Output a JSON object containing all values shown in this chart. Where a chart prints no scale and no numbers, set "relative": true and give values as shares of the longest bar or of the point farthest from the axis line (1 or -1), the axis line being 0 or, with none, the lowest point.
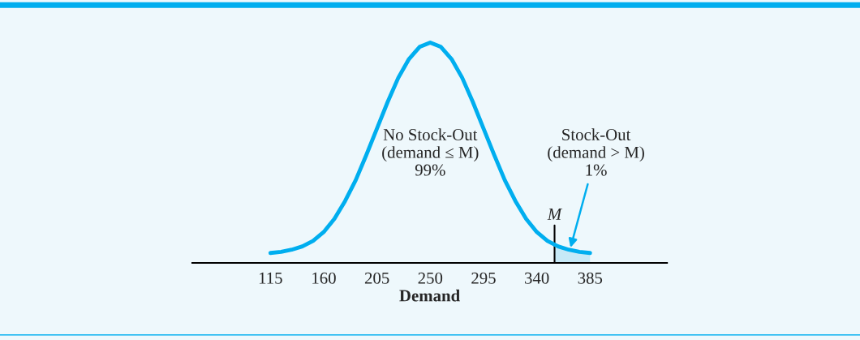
{
  "chart_data": {
    "type": "line",
    "relative": true,
    "xlabel": "Demand",
    "x": [
      115,
      124,
      133,
      142,
      151,
      160,
      169,
      178,
      187,
      196,
      205,
      214,
      223,
      232,
      241,
      250,
      259,
      268,
      277,
      286,
      295,
      304,
      313,
      322,
      331,
      340,
      349,
      358,
      367,
      376,
      385
    ],
    "series": [
      {
        "type": "area",
        "color": "#c6e9f7",
        "x": [
          355,
          358,
          367,
          376,
          385
        ],
        "values": [
          0.083,
          0.075,
          0.06,
          0.05,
          0.045
        ]
      },
      {
        "color": "#00aeef",
        "values": [
          0.045,
          0.05,
          0.06,
          0.075,
          0.1,
          0.14,
          0.2,
          0.28,
          0.375,
          0.49,
          0.61,
          0.73,
          0.84,
          0.925,
          0.98,
          1,
          0.98,
          0.925,
          0.84,
          0.73,
          0.61,
          0.49,
          0.375,
          0.28,
          0.2,
          0.14,
          0.1,
          0.075,
          0.06,
          0.05,
          0.045
        ]
      }
    ],
    "xlim": [
      49,
      450
    ],
    "xticks": [
      115,
      160,
      205,
      250,
      295,
      340,
      385
    ],
    "ref_lines": [
      {
        "axis": "x",
        "value": 355,
        "label": "M"
      }
    ],
    "annotations": [
      "No Stock-Out\n(demand ≤ M)\n99%",
      {
        "text": "Stock-Out\n(demand > M)\n1%",
        "x": 368,
        "y": 0.06
      }
    ],
    "grid": false,
    "legend": false,
    "line_style": "solid",
    "marker": "none"
  }
}
